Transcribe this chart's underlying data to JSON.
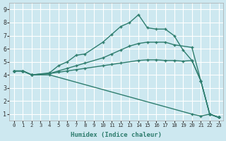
{
  "xlabel": "Humidex (Indice chaleur)",
  "xlim": [
    -0.5,
    23.5
  ],
  "ylim": [
    0.5,
    9.5
  ],
  "xticks": [
    0,
    1,
    2,
    3,
    4,
    5,
    6,
    7,
    8,
    9,
    10,
    11,
    12,
    13,
    14,
    15,
    16,
    17,
    18,
    19,
    20,
    21,
    22,
    23
  ],
  "yticks": [
    1,
    2,
    3,
    4,
    5,
    6,
    7,
    8,
    9
  ],
  "bg_color": "#cde8f0",
  "grid_color": "#ffffff",
  "line_color": "#2e7d6e",
  "lines": [
    {
      "x": [
        0,
        1,
        2,
        4,
        5,
        6,
        7,
        8,
        10,
        11,
        12,
        13,
        14,
        15,
        16,
        17,
        18,
        19,
        20,
        21,
        22,
        23
      ],
      "y": [
        4.3,
        4.3,
        4.0,
        4.15,
        4.7,
        5.0,
        5.5,
        5.6,
        6.5,
        7.1,
        7.7,
        8.0,
        8.6,
        7.6,
        7.5,
        7.5,
        7.0,
        5.9,
        5.1,
        3.55,
        1.0,
        0.75
      ],
      "style": "-",
      "marker": "+"
    },
    {
      "x": [
        0,
        1,
        2,
        4,
        5,
        6,
        7,
        8,
        10,
        11,
        12,
        13,
        14,
        15,
        16,
        17,
        18,
        20,
        21,
        22,
        23
      ],
      "y": [
        4.3,
        4.3,
        4.0,
        4.1,
        4.3,
        4.5,
        4.7,
        4.9,
        5.3,
        5.6,
        5.9,
        6.2,
        6.4,
        6.5,
        6.5,
        6.5,
        6.3,
        6.1,
        3.55,
        1.0,
        0.75
      ],
      "style": "-",
      "marker": "+"
    },
    {
      "x": [
        0,
        1,
        2,
        4,
        5,
        6,
        7,
        8,
        10,
        11,
        12,
        14,
        15,
        16,
        17,
        18,
        19,
        20,
        21,
        22,
        23
      ],
      "y": [
        4.3,
        4.3,
        4.0,
        4.1,
        4.2,
        4.3,
        4.4,
        4.5,
        4.7,
        4.8,
        4.9,
        5.1,
        5.15,
        5.15,
        5.1,
        5.1,
        5.05,
        5.1,
        3.55,
        1.0,
        0.75
      ],
      "style": "-",
      "marker": "+"
    },
    {
      "x": [
        0,
        1,
        2,
        4,
        20,
        21,
        22,
        23
      ],
      "y": [
        4.3,
        4.3,
        4.0,
        4.0,
        1.0,
        0.85,
        1.0,
        0.75
      ],
      "style": "-",
      "marker": "+"
    }
  ]
}
